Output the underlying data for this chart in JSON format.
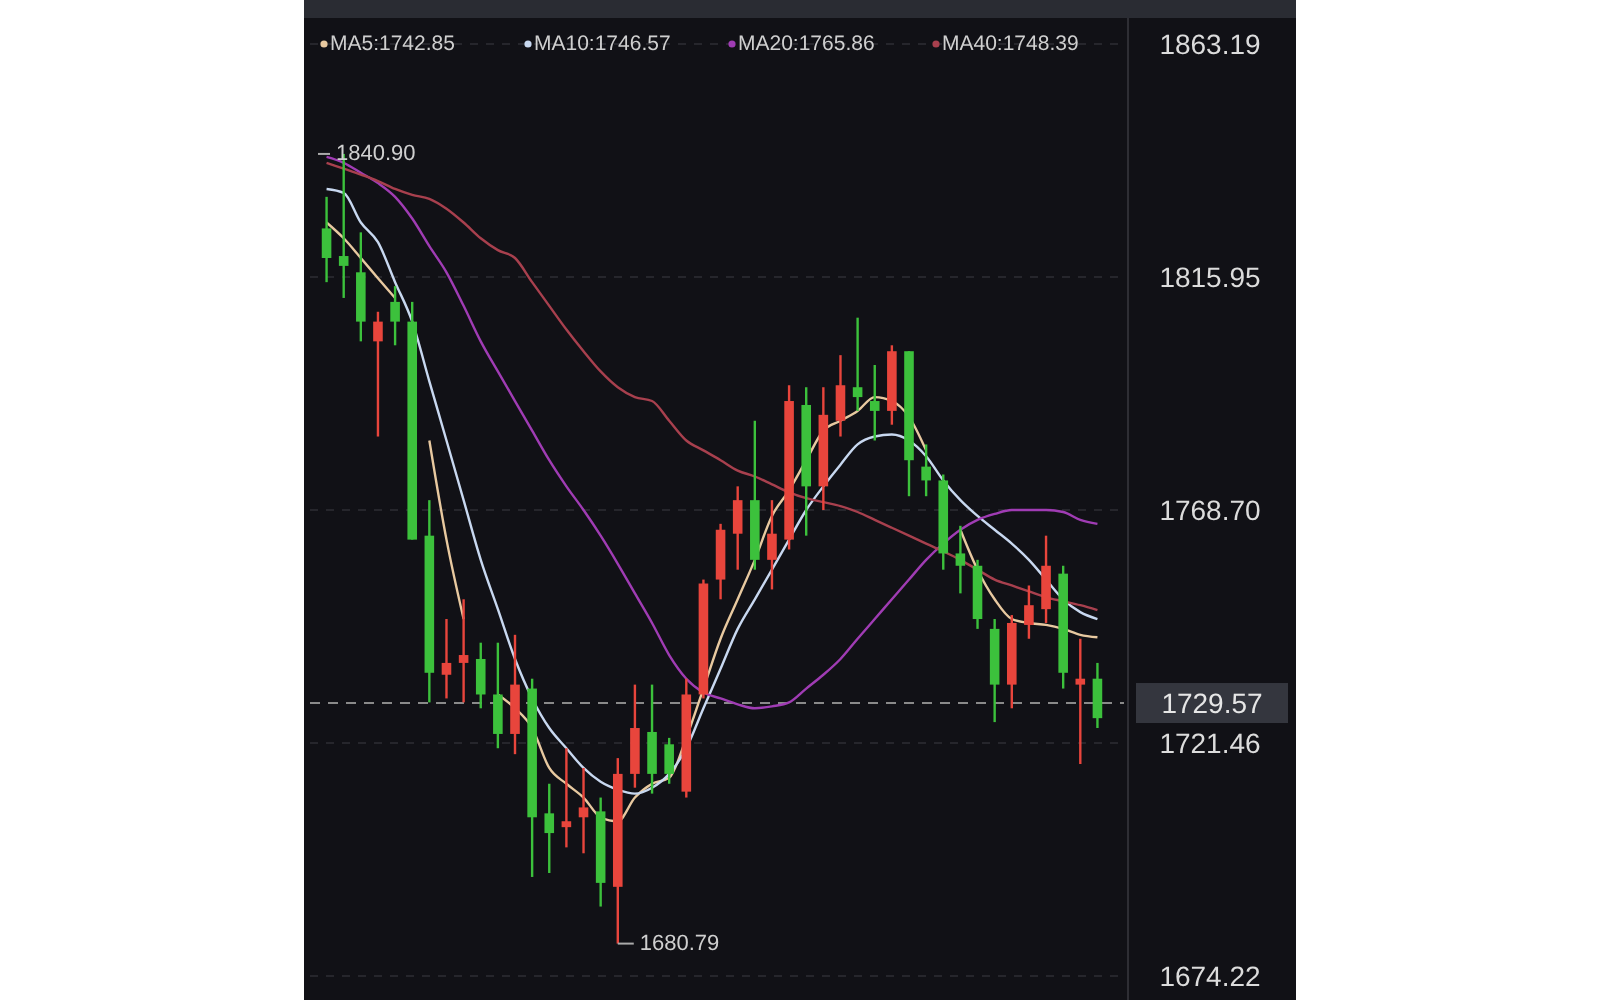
{
  "chart_data": {
    "type": "candlestick",
    "categories": [
      null,
      null,
      null,
      null,
      null,
      null,
      null,
      null,
      null,
      null,
      null,
      null,
      null,
      null,
      null,
      null,
      null,
      null,
      null,
      null,
      null,
      null,
      null,
      null,
      null,
      null,
      null,
      null,
      null,
      null,
      null,
      null,
      null,
      null,
      null,
      null,
      null,
      null,
      null,
      null,
      null,
      null,
      null,
      null,
      null,
      null
    ],
    "ohlc": [
      [
        1825.8,
        1832.2,
        1814.9,
        1819.8
      ],
      [
        1820.2,
        1840.9,
        1811.7,
        1818.2
      ],
      [
        1816.9,
        1825.0,
        1802.9,
        1806.9
      ],
      [
        1802.9,
        1808.9,
        1783.6,
        1806.9
      ],
      [
        1810.9,
        1814.1,
        1802.1,
        1806.9
      ],
      [
        1806.9,
        1810.9,
        1762.7,
        1762.7
      ],
      [
        1763.5,
        1770.7,
        1729.7,
        1735.7
      ],
      [
        1735.3,
        1746.6,
        1730.5,
        1737.7
      ],
      [
        1737.7,
        1750.6,
        1729.7,
        1739.3
      ],
      [
        1738.5,
        1741.8,
        1728.5,
        1731.3
      ],
      [
        1731.3,
        1741.8,
        1720.4,
        1723.3
      ],
      [
        1723.3,
        1743.4,
        1719.2,
        1733.3
      ],
      [
        1732.5,
        1734.5,
        1694.3,
        1706.4
      ],
      [
        1707.2,
        1713.2,
        1695.1,
        1703.2
      ],
      [
        1704.4,
        1720.4,
        1700.3,
        1705.6
      ],
      [
        1706.4,
        1716.4,
        1699.1,
        1708.4
      ],
      [
        1707.6,
        1710.4,
        1688.3,
        1693.1
      ],
      [
        1692.3,
        1718.4,
        1680.79,
        1715.2
      ],
      [
        1715.2,
        1733.3,
        1712.4,
        1724.5
      ],
      [
        1723.7,
        1733.3,
        1711.2,
        1715.2
      ],
      [
        1721.2,
        1722.5,
        1713.2,
        1715.2
      ],
      [
        1711.6,
        1734.5,
        1710.4,
        1731.3
      ],
      [
        1731.3,
        1754.6,
        1730.5,
        1753.8
      ],
      [
        1754.6,
        1765.9,
        1750.6,
        1764.7
      ],
      [
        1763.9,
        1773.5,
        1756.6,
        1770.7
      ],
      [
        1770.7,
        1786.8,
        1756.6,
        1758.6
      ],
      [
        1758.6,
        1770.7,
        1752.6,
        1763.9
      ],
      [
        1762.7,
        1794.0,
        1760.7,
        1790.8
      ],
      [
        1790.0,
        1793.6,
        1763.5,
        1773.5
      ],
      [
        1773.5,
        1793.6,
        1768.7,
        1788.0
      ],
      [
        1786.8,
        1800.1,
        1783.6,
        1794.0
      ],
      [
        1793.6,
        1807.7,
        1788.8,
        1791.6
      ],
      [
        1790.8,
        1798.1,
        1782.8,
        1788.8
      ],
      [
        1788.8,
        1802.1,
        1786.0,
        1800.9
      ],
      [
        1800.9,
        1800.9,
        1771.5,
        1778.8
      ],
      [
        1777.5,
        1782.0,
        1771.5,
        1774.7
      ],
      [
        1774.7,
        1775.9,
        1756.6,
        1759.9
      ],
      [
        1759.9,
        1765.5,
        1751.8,
        1757.4
      ],
      [
        1757.4,
        1758.6,
        1744.6,
        1746.6
      ],
      [
        1744.6,
        1746.6,
        1725.7,
        1733.3
      ],
      [
        1733.3,
        1747.4,
        1728.5,
        1745.8
      ],
      [
        1745.4,
        1753.4,
        1742.6,
        1749.4
      ],
      [
        1748.6,
        1763.5,
        1745.8,
        1757.4
      ],
      [
        1755.8,
        1757.4,
        1732.5,
        1735.7
      ],
      [
        1733.3,
        1742.6,
        1717.2,
        1734.5
      ],
      [
        1734.5,
        1737.7,
        1724.5,
        1726.5
      ]
    ],
    "colors": [
      "#3cc13c",
      "#3cc13c",
      "#3cc13c",
      "#e8453c",
      "#3cc13c",
      "#3cc13c",
      "#3cc13c",
      "#e8453c",
      "#e8453c",
      "#3cc13c",
      "#3cc13c",
      "#e8453c",
      "#3cc13c",
      "#3cc13c",
      "#e8453c",
      "#e8453c",
      "#3cc13c",
      "#e8453c",
      "#e8453c",
      "#3cc13c",
      "#3cc13c",
      "#e8453c",
      "#e8453c",
      "#e8453c",
      "#e8453c",
      "#3cc13c",
      "#e8453c",
      "#e8453c",
      "#3cc13c",
      "#e8453c",
      "#e8453c",
      "#3cc13c",
      "#3cc13c",
      "#e8453c",
      "#3cc13c",
      "#3cc13c",
      "#3cc13c",
      "#3cc13c",
      "#3cc13c",
      "#3cc13c",
      "#e8453c",
      "#e8453c",
      "#e8453c",
      "#3cc13c",
      "#e8453c",
      "#3cc13c"
    ],
    "series": [
      {
        "name": "MA5:1742.85",
        "type": "line",
        "color": "#e8c9a0",
        "values": [
          1827.0,
          1823.8,
          1819.8,
          1815.7,
          1811.7,
          null,
          1782.8,
          1762.7,
          1746.6,
          null,
          1731.3,
          1728.5,
          1724.5,
          1716.4,
          1713.2,
          1710.4,
          1706.4,
          1705.6,
          1710.4,
          1713.2,
          1714.4,
          1722.5,
          1732.5,
          1742.6,
          1750.6,
          1758.6,
          1767.5,
          1772.7,
          1778.8,
          1784.8,
          1786.8,
          1788.8,
          1791.6,
          1790.8,
          1787.6,
          1780.8,
          null,
          1764.7,
          1756.6,
          1750.6,
          1746.6,
          1745.8,
          1745.4,
          1744.6,
          1743.4,
          1742.9
        ]
      },
      {
        "name": "MA10:1746.57",
        "type": "line",
        "color": "#c8d8f0",
        "values": [
          1833.8,
          1833.0,
          1827.0,
          1823.0,
          1814.9,
          1806.9,
          1794.8,
          1782.8,
          1770.7,
          1758.6,
          1748.6,
          1738.5,
          1730.5,
          1724.5,
          1720.4,
          1716.4,
          1713.6,
          1712.0,
          1711.2,
          1712.4,
          1715.2,
          1720.4,
          1728.5,
          1736.5,
          1744.6,
          1750.6,
          1756.6,
          1762.7,
          1768.7,
          1773.5,
          1777.9,
          1782.0,
          1783.6,
          1784.0,
          1782.8,
          1779.6,
          1774.7,
          1770.7,
          1767.5,
          1764.7,
          1761.9,
          1758.6,
          1754.6,
          1750.6,
          1748.0,
          1746.6
        ]
      },
      {
        "name": "MA20:1765.86",
        "type": "line",
        "color": "#a03cb4",
        "values": [
          1840.3,
          1839.1,
          1837.1,
          1835.0,
          1832.2,
          1827.8,
          1822.2,
          1816.9,
          1810.1,
          1802.9,
          1796.8,
          1790.8,
          1784.8,
          1778.8,
          1773.5,
          1768.7,
          1763.5,
          1757.8,
          1751.8,
          1745.8,
          1739.3,
          1734.5,
          1731.7,
          1730.5,
          1729.3,
          1728.5,
          1728.9,
          1729.7,
          1732.5,
          1735.3,
          1738.5,
          1742.6,
          1746.6,
          1750.6,
          1754.6,
          1758.6,
          1761.9,
          1764.7,
          1766.7,
          1767.9,
          1768.7,
          1768.7,
          1768.7,
          1768.3,
          1766.7,
          1765.9
        ]
      },
      {
        "name": "MA40:1748.39",
        "type": "line",
        "color": "#a8404e",
        "values": [
          1839.1,
          1837.9,
          1836.7,
          1835.4,
          1833.8,
          1832.6,
          1831.8,
          1829.8,
          1827.0,
          1823.8,
          1821.4,
          1819.8,
          1814.9,
          1810.1,
          1805.3,
          1800.9,
          1796.8,
          1793.6,
          1791.6,
          1790.8,
          1786.8,
          1782.8,
          1780.8,
          1778.8,
          1776.7,
          1775.5,
          1773.9,
          1772.3,
          1771.1,
          1770.3,
          1769.5,
          1768.3,
          1766.7,
          1765.1,
          1763.5,
          1761.9,
          1760.3,
          1758.6,
          1756.6,
          1754.6,
          1753.4,
          1752.2,
          1751.0,
          1750.2,
          1749.4,
          1748.4
        ]
      }
    ],
    "ylim": [
      1674.22,
      1863.19
    ],
    "yticks": [
      {
        "value": 1674.22,
        "label": "1674.22"
      },
      {
        "value": 1721.46,
        "label": "1721.46"
      },
      {
        "value": 1768.7,
        "label": "1768.70"
      },
      {
        "value": 1815.95,
        "label": "1815.95"
      },
      {
        "value": 1863.19,
        "label": "1863.19"
      }
    ],
    "ref_lines": [
      {
        "axis": "y",
        "value": 1729.57,
        "label": "1729.57",
        "line_style": "dashed",
        "color": "#8a8a8a"
      }
    ],
    "annotations": [
      "1840.90",
      "1680.79"
    ],
    "grid": "y",
    "legend": "top left"
  }
}
